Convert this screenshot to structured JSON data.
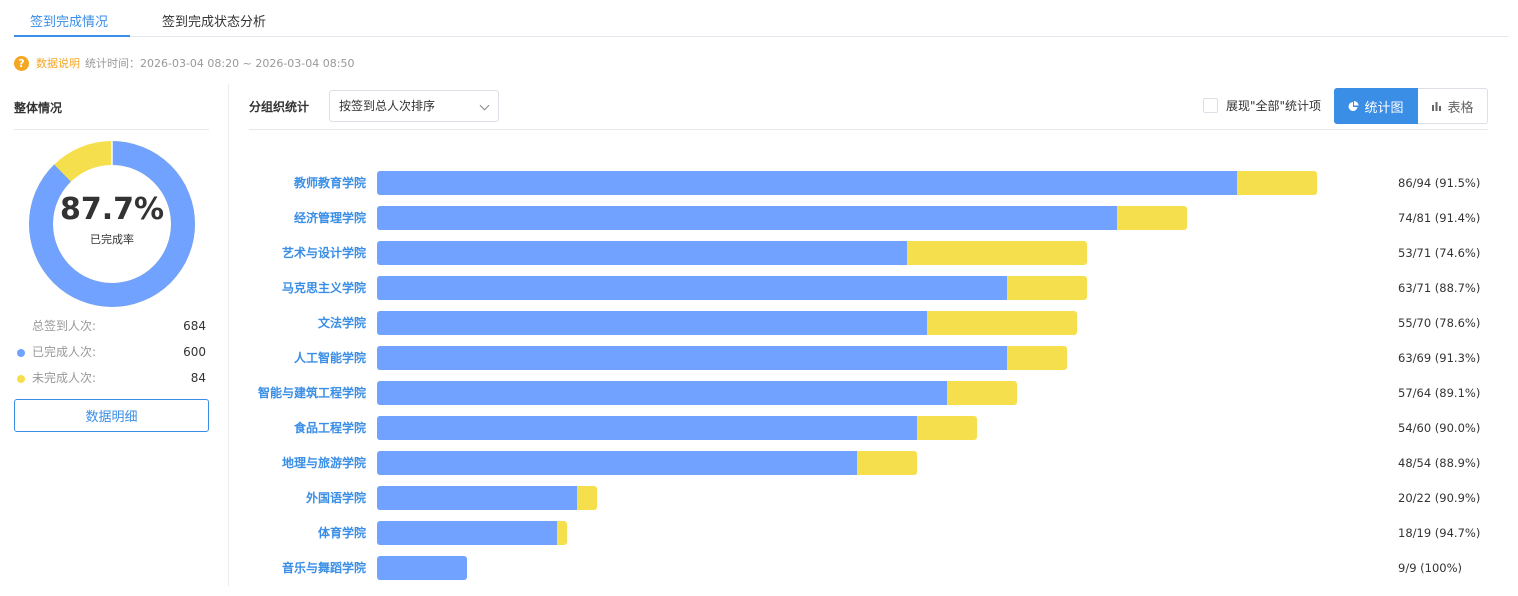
{
  "tabs": [
    {
      "label": "签到完成情况",
      "active": true
    },
    {
      "label": "签到完成状态分析",
      "active": false
    }
  ],
  "info": {
    "icon": "question-icon",
    "link_label": "数据说明",
    "time_label": "统计时间：2026-03-04 08:20 ~ 2026-03-04 08:50"
  },
  "overall": {
    "title": "整体情况",
    "percent_text": "87.7%",
    "percent_label": "已完成率",
    "completed_fraction": 0.877,
    "stats": [
      {
        "label": "总签到人次:",
        "value": "684",
        "dot": ""
      },
      {
        "label": "已完成人次:",
        "value": "600",
        "dot": "#72a2ff"
      },
      {
        "label": "未完成人次:",
        "value": "84",
        "dot": "#f5df4d"
      }
    ],
    "detail_button": "数据明细"
  },
  "group": {
    "title": "分组织统计",
    "sort_select": "按签到总人次排序",
    "show_all_label": "展现\"全部\"统计项",
    "show_all_checked": false,
    "chart_button": "统计图",
    "table_button": "表格",
    "chart_icon": "pie-chart-icon",
    "table_icon": "bar-chart-icon"
  },
  "colors": {
    "accent": "#3a8ee6",
    "completed": "#72a2ff",
    "incomplete": "#f5df4d",
    "category_label": "#3a8ee6"
  },
  "chart_data": {
    "type": "bar",
    "orientation": "horizontal",
    "stacked": true,
    "categories": [
      "教师教育学院",
      "经济管理学院",
      "艺术与设计学院",
      "马克思主义学院",
      "文法学院",
      "人工智能学院",
      "智能与建筑工程学院",
      "食品工程学院",
      "地理与旅游学院",
      "外国语学院",
      "体育学院",
      "音乐与舞蹈学院"
    ],
    "series": [
      {
        "name": "已完成人次",
        "values": [
          86,
          74,
          53,
          63,
          55,
          63,
          57,
          54,
          48,
          20,
          18,
          9
        ]
      },
      {
        "name": "未完成人次",
        "values": [
          8,
          7,
          18,
          8,
          15,
          6,
          7,
          6,
          6,
          2,
          1,
          0
        ]
      }
    ],
    "data_labels": [
      "86/94 (91.5%)",
      "74/81 (91.4%)",
      "53/71 (74.6%)",
      "63/71 (88.7%)",
      "55/70 (78.6%)",
      "63/69 (91.3%)",
      "57/64 (89.1%)",
      "54/60 (90.0%)",
      "48/54 (88.9%)",
      "20/22 (90.9%)",
      "18/19 (94.7%)",
      "9/9 (100%)"
    ],
    "xlim": [
      0,
      94
    ],
    "legend": "none",
    "grid": false
  }
}
